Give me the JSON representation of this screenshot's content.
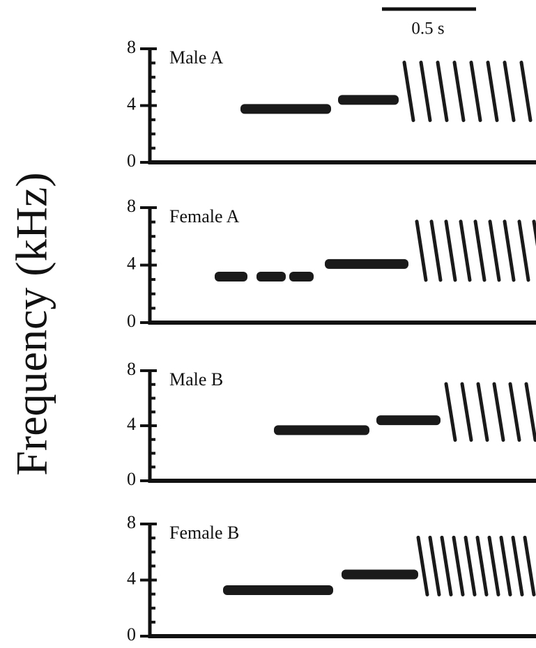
{
  "figure": {
    "y_label": "Frequency (kHz)",
    "scale_bar": "0.5 s",
    "yticks": [
      0,
      4,
      8
    ],
    "panels": [
      {
        "label": "Male A"
      },
      {
        "label": "Female A"
      },
      {
        "label": "Male B"
      },
      {
        "label": "Female B"
      }
    ]
  }
}
